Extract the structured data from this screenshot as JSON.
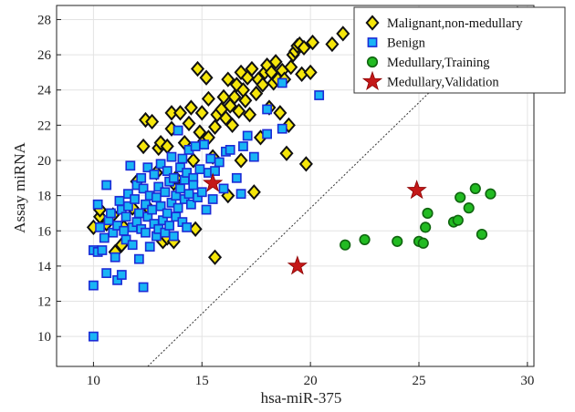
{
  "chart_data": {
    "type": "scatter",
    "title": "",
    "xlabel": "hsa-miR-375",
    "ylabel": "Assay miRNA",
    "xlim": [
      8.3,
      30.3
    ],
    "ylim": [
      8.3,
      28.8
    ],
    "xticks": [
      10,
      15,
      20,
      25,
      30
    ],
    "yticks": [
      10,
      12,
      14,
      16,
      18,
      20,
      22,
      24,
      26,
      28
    ],
    "grid": true,
    "legend_position": "top-right",
    "reference_line": {
      "style": "dotted",
      "color": "#333333",
      "points": [
        [
          12.5,
          8.3
        ],
        [
          29.6,
          28.8
        ]
      ]
    },
    "series": [
      {
        "name": "Malignant,non-medullary",
        "marker": "diamond",
        "color": "#f5e60a",
        "edge": "#111111",
        "points": [
          [
            10.0,
            16.2
          ],
          [
            10.3,
            16.8
          ],
          [
            10.3,
            17.2
          ],
          [
            10.6,
            16.4
          ],
          [
            10.9,
            16.9
          ],
          [
            11.0,
            14.8
          ],
          [
            11.3,
            15.2
          ],
          [
            11.4,
            16.2
          ],
          [
            11.8,
            17.3
          ],
          [
            12.0,
            18.8
          ],
          [
            12.3,
            20.8
          ],
          [
            12.4,
            22.3
          ],
          [
            12.7,
            22.2
          ],
          [
            12.6,
            17.2
          ],
          [
            12.9,
            19.3
          ],
          [
            13.0,
            20.7
          ],
          [
            13.1,
            21.0
          ],
          [
            13.2,
            15.4
          ],
          [
            13.4,
            15.6
          ],
          [
            13.4,
            20.8
          ],
          [
            13.6,
            22.7
          ],
          [
            13.6,
            21.8
          ],
          [
            13.7,
            18.7
          ],
          [
            13.7,
            15.4
          ],
          [
            13.8,
            19.0
          ],
          [
            14.0,
            22.7
          ],
          [
            14.2,
            21.0
          ],
          [
            14.4,
            22.1
          ],
          [
            14.5,
            23.0
          ],
          [
            14.6,
            20.0
          ],
          [
            14.7,
            16.1
          ],
          [
            14.8,
            25.2
          ],
          [
            14.9,
            21.6
          ],
          [
            15.0,
            22.7
          ],
          [
            15.1,
            21.1
          ],
          [
            15.2,
            24.7
          ],
          [
            15.3,
            21.3
          ],
          [
            15.3,
            23.5
          ],
          [
            15.5,
            20.2
          ],
          [
            15.6,
            21.9
          ],
          [
            15.6,
            14.5
          ],
          [
            15.7,
            22.6
          ],
          [
            15.9,
            22.9
          ],
          [
            16.0,
            23.6
          ],
          [
            16.1,
            22.4
          ],
          [
            16.2,
            24.6
          ],
          [
            16.3,
            23.1
          ],
          [
            16.2,
            18.0
          ],
          [
            16.4,
            22.0
          ],
          [
            16.5,
            23.6
          ],
          [
            16.6,
            24.3
          ],
          [
            16.7,
            22.8
          ],
          [
            16.8,
            25.0
          ],
          [
            16.8,
            20.0
          ],
          [
            16.9,
            24.0
          ],
          [
            17.0,
            23.4
          ],
          [
            17.1,
            24.7
          ],
          [
            17.2,
            22.6
          ],
          [
            17.3,
            25.2
          ],
          [
            17.4,
            18.2
          ],
          [
            17.5,
            23.8
          ],
          [
            17.6,
            24.6
          ],
          [
            17.7,
            21.3
          ],
          [
            17.8,
            24.3
          ],
          [
            17.9,
            25.0
          ],
          [
            18.0,
            25.4
          ],
          [
            18.1,
            23.0
          ],
          [
            18.2,
            25.0
          ],
          [
            18.3,
            24.4
          ],
          [
            18.4,
            25.6
          ],
          [
            18.5,
            24.6
          ],
          [
            18.6,
            22.7
          ],
          [
            18.7,
            25.1
          ],
          [
            18.8,
            24.6
          ],
          [
            18.9,
            20.4
          ],
          [
            19.0,
            22.0
          ],
          [
            19.1,
            25.3
          ],
          [
            19.2,
            26.0
          ],
          [
            19.3,
            26.2
          ],
          [
            19.4,
            26.5
          ],
          [
            19.5,
            26.6
          ],
          [
            19.6,
            24.9
          ],
          [
            19.7,
            26.4
          ],
          [
            19.8,
            19.8
          ],
          [
            20.0,
            25.0
          ],
          [
            20.1,
            26.7
          ],
          [
            21.0,
            26.6
          ],
          [
            21.5,
            27.2
          ],
          [
            22.6,
            27.2
          ]
        ]
      },
      {
        "name": "Benign",
        "marker": "square",
        "color": "#19b4f5",
        "edge": "#1b2bd6",
        "points": [
          [
            10.0,
            10.0
          ],
          [
            10.0,
            12.9
          ],
          [
            10.0,
            14.9
          ],
          [
            10.2,
            14.8
          ],
          [
            10.4,
            14.9
          ],
          [
            10.6,
            13.6
          ],
          [
            10.6,
            18.6
          ],
          [
            10.2,
            17.5
          ],
          [
            10.3,
            16.2
          ],
          [
            10.5,
            15.6
          ],
          [
            10.7,
            16.6
          ],
          [
            10.8,
            17.0
          ],
          [
            10.9,
            15.9
          ],
          [
            11.0,
            14.5
          ],
          [
            11.1,
            13.2
          ],
          [
            11.1,
            16.3
          ],
          [
            11.2,
            17.7
          ],
          [
            11.3,
            13.5
          ],
          [
            11.3,
            17.2
          ],
          [
            11.4,
            16.0
          ],
          [
            11.5,
            15.5
          ],
          [
            11.5,
            16.8
          ],
          [
            11.6,
            17.4
          ],
          [
            11.6,
            18.1
          ],
          [
            11.7,
            19.7
          ],
          [
            11.8,
            16.2
          ],
          [
            11.8,
            15.2
          ],
          [
            11.9,
            17.8
          ],
          [
            12.0,
            16.5
          ],
          [
            12.0,
            18.6
          ],
          [
            12.1,
            14.4
          ],
          [
            12.1,
            17.0
          ],
          [
            12.2,
            16.1
          ],
          [
            12.2,
            19.0
          ],
          [
            12.3,
            12.8
          ],
          [
            12.3,
            18.4
          ],
          [
            12.4,
            15.9
          ],
          [
            12.4,
            17.5
          ],
          [
            12.5,
            19.6
          ],
          [
            12.5,
            16.8
          ],
          [
            12.6,
            15.1
          ],
          [
            12.6,
            18.0
          ],
          [
            12.7,
            17.2
          ],
          [
            12.8,
            16.4
          ],
          [
            12.8,
            19.2
          ],
          [
            12.9,
            15.7
          ],
          [
            12.9,
            17.9
          ],
          [
            13.0,
            18.5
          ],
          [
            13.0,
            16.1
          ],
          [
            13.1,
            19.8
          ],
          [
            13.1,
            17.4
          ],
          [
            13.2,
            16.6
          ],
          [
            13.3,
            18.2
          ],
          [
            13.3,
            15.9
          ],
          [
            13.4,
            19.4
          ],
          [
            13.4,
            17.0
          ],
          [
            13.5,
            18.8
          ],
          [
            13.5,
            16.3
          ],
          [
            13.6,
            20.2
          ],
          [
            13.6,
            17.6
          ],
          [
            13.7,
            15.7
          ],
          [
            13.7,
            19.0
          ],
          [
            13.8,
            18.0
          ],
          [
            13.8,
            16.8
          ],
          [
            13.9,
            21.7
          ],
          [
            13.9,
            17.3
          ],
          [
            14.0,
            19.6
          ],
          [
            14.0,
            18.4
          ],
          [
            14.1,
            16.5
          ],
          [
            14.1,
            20.1
          ],
          [
            14.2,
            17.8
          ],
          [
            14.2,
            18.9
          ],
          [
            14.3,
            16.2
          ],
          [
            14.3,
            19.3
          ],
          [
            14.4,
            18.1
          ],
          [
            14.4,
            20.6
          ],
          [
            14.5,
            17.5
          ],
          [
            14.6,
            19.0
          ],
          [
            14.6,
            18.6
          ],
          [
            14.7,
            20.8
          ],
          [
            14.8,
            17.9
          ],
          [
            14.9,
            19.5
          ],
          [
            15.0,
            18.2
          ],
          [
            15.1,
            20.9
          ],
          [
            15.2,
            17.2
          ],
          [
            15.3,
            19.3
          ],
          [
            15.4,
            20.1
          ],
          [
            15.5,
            17.8
          ],
          [
            15.6,
            19.4
          ],
          [
            15.8,
            19.9
          ],
          [
            16.0,
            18.4
          ],
          [
            16.1,
            20.5
          ],
          [
            16.3,
            20.6
          ],
          [
            16.6,
            19.0
          ],
          [
            16.8,
            18.1
          ],
          [
            16.9,
            20.8
          ],
          [
            17.1,
            21.4
          ],
          [
            17.4,
            20.2
          ],
          [
            18.0,
            21.5
          ],
          [
            18.0,
            22.9
          ],
          [
            18.7,
            21.8
          ],
          [
            18.7,
            24.4
          ],
          [
            20.4,
            23.7
          ]
        ]
      },
      {
        "name": "Medullary,Training",
        "marker": "circle",
        "color": "#22bb22",
        "edge": "#0f640f",
        "points": [
          [
            21.6,
            15.2
          ],
          [
            22.5,
            15.5
          ],
          [
            24.0,
            15.4
          ],
          [
            25.0,
            15.4
          ],
          [
            25.2,
            15.3
          ],
          [
            25.3,
            16.2
          ],
          [
            25.4,
            17.0
          ],
          [
            26.6,
            16.5
          ],
          [
            26.8,
            16.6
          ],
          [
            26.9,
            17.9
          ],
          [
            27.3,
            17.3
          ],
          [
            27.6,
            18.4
          ],
          [
            27.9,
            15.8
          ],
          [
            28.3,
            18.1
          ]
        ]
      },
      {
        "name": "Medullary,Validation",
        "marker": "star",
        "color": "#c41818",
        "edge": "#8b0000",
        "points": [
          [
            15.5,
            18.7
          ],
          [
            19.4,
            14.0
          ],
          [
            24.9,
            18.3
          ]
        ]
      }
    ]
  }
}
